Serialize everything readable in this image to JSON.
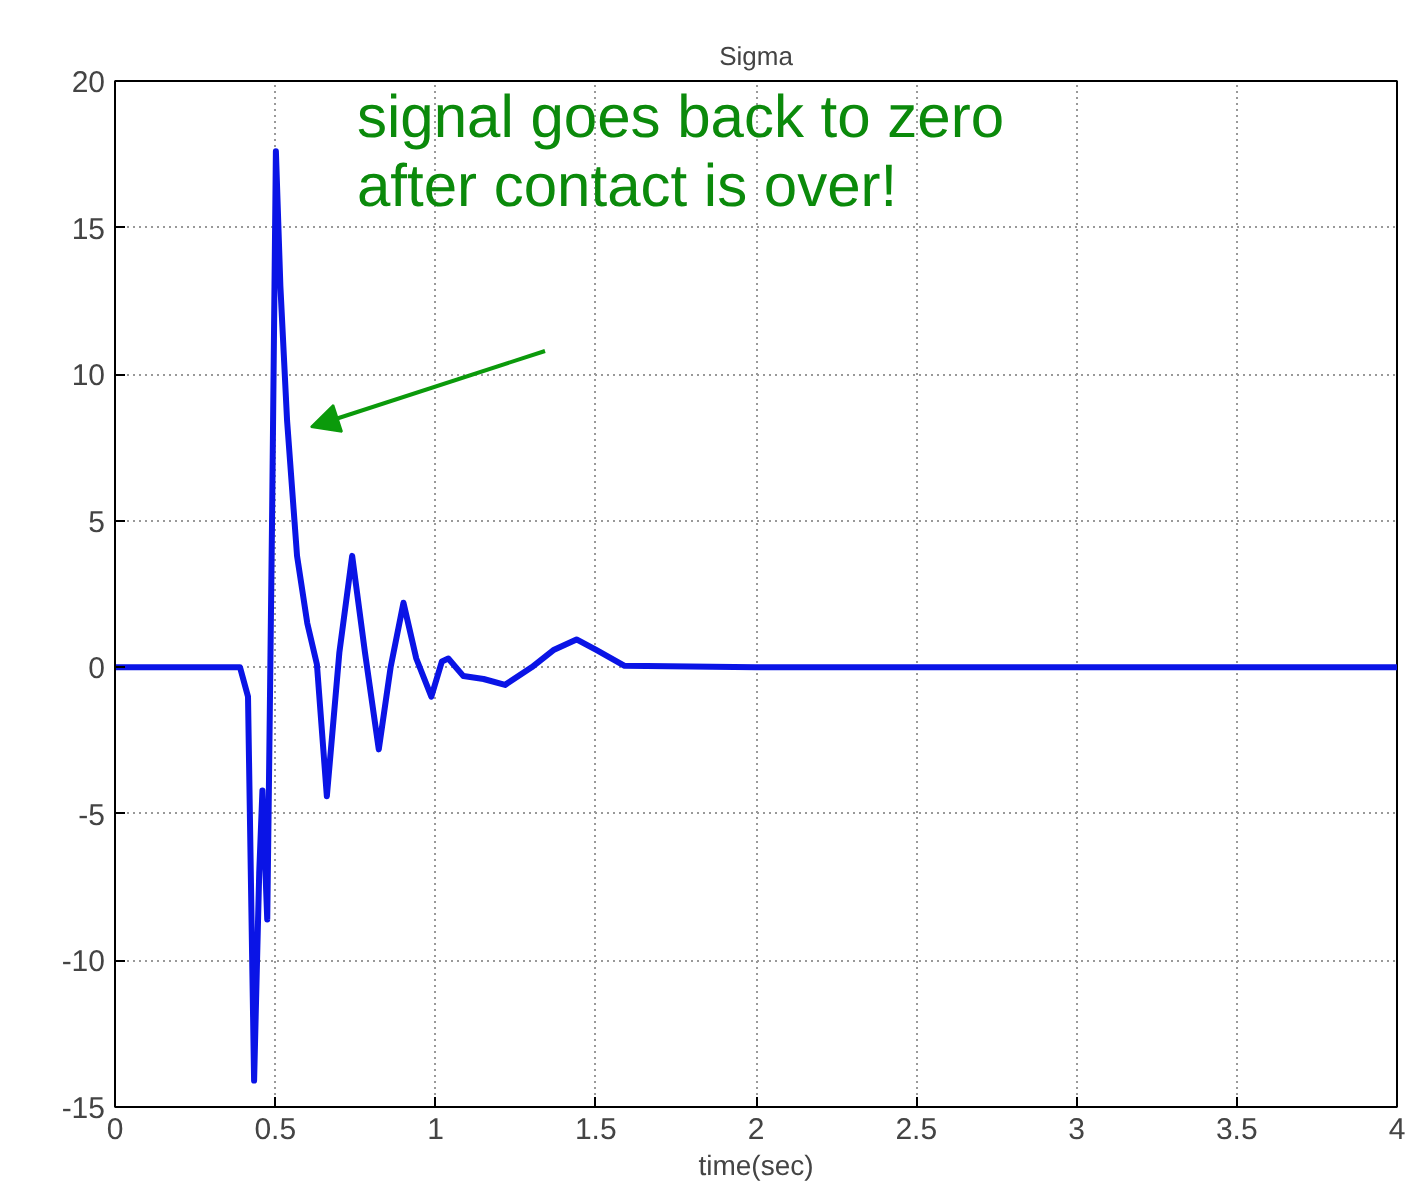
{
  "chart_data": {
    "type": "line",
    "title": "Sigma",
    "xlabel": "time(sec)",
    "x": [
      0,
      0.39,
      0.415,
      0.434,
      0.45,
      0.46,
      0.475,
      0.48,
      0.49,
      0.502,
      0.516,
      0.537,
      0.568,
      0.6,
      0.63,
      0.661,
      0.7,
      0.74,
      0.78,
      0.823,
      0.86,
      0.9,
      0.94,
      0.987,
      1.02,
      1.04,
      1.087,
      1.15,
      1.217,
      1.3,
      1.37,
      1.44,
      1.5,
      1.59,
      2,
      3,
      4
    ],
    "series": [
      {
        "color": "#0a14e6",
        "values": [
          0,
          0,
          -1,
          -14.1,
          -7,
          -4.2,
          -8.6,
          -4.3,
          5,
          17.6,
          13,
          8.4,
          3.8,
          1.5,
          0.1,
          -4.4,
          0.5,
          3.8,
          0.5,
          -2.8,
          0,
          2.2,
          0.3,
          -1.0,
          0.2,
          0.3,
          -0.3,
          -0.4,
          -0.6,
          0,
          0.6,
          0.95,
          0.6,
          0.05,
          0,
          0,
          0
        ]
      }
    ],
    "xlim": [
      0,
      4
    ],
    "ylim": [
      -15,
      20
    ],
    "xticks": [
      0,
      0.5,
      1,
      1.5,
      2,
      2.5,
      3,
      3.5,
      4
    ],
    "yticks": [
      -15,
      -10,
      -5,
      0,
      5,
      10,
      15,
      20
    ],
    "grid": true,
    "line_style": "solid",
    "marker": "none",
    "annotations": [
      "signal goes back to zero\nafter contact is over!"
    ]
  }
}
